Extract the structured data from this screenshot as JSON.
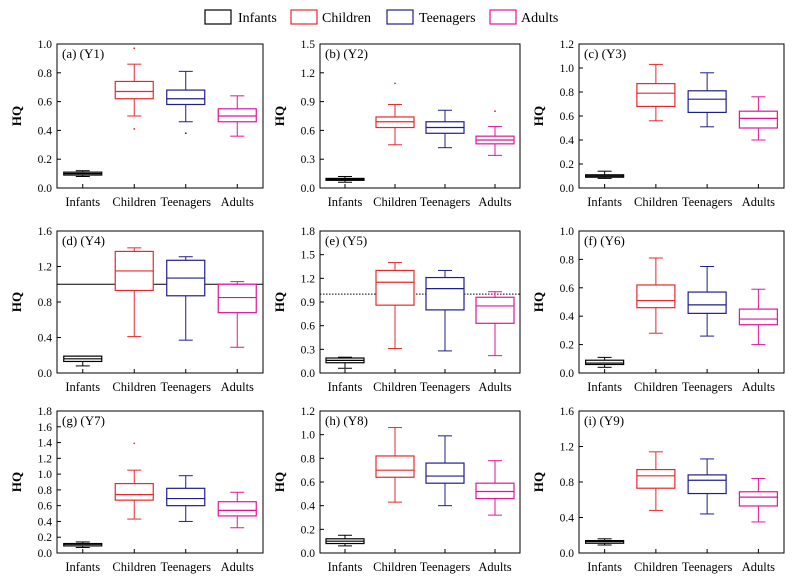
{
  "legend": {
    "items": [
      {
        "label": "Infants",
        "color": "#000000"
      },
      {
        "label": "Children",
        "color": "#e8282d"
      },
      {
        "label": "Teenagers",
        "color": "#1f1f8c"
      },
      {
        "label": "Adults",
        "color": "#e0169a"
      }
    ]
  },
  "chart_data": [
    {
      "type": "box",
      "title": "(a)  (Y1)",
      "ylabel": "HQ",
      "categories": [
        "Infants",
        "Children",
        "Teenagers",
        "Adults"
      ],
      "ylim": [
        0,
        1.0
      ],
      "yticks": [
        "0.0",
        "0.2",
        "0.4",
        "0.6",
        "0.8",
        "1.0"
      ],
      "reference_line": null,
      "series": [
        {
          "name": "Infants",
          "min": 0.08,
          "q1": 0.09,
          "median": 0.1,
          "q3": 0.11,
          "max": 0.12,
          "outliers": []
        },
        {
          "name": "Children",
          "min": 0.5,
          "q1": 0.62,
          "median": 0.67,
          "q3": 0.74,
          "max": 0.86,
          "outliers": [
            0.41,
            0.97
          ]
        },
        {
          "name": "Teenagers",
          "min": 0.46,
          "q1": 0.58,
          "median": 0.62,
          "q3": 0.68,
          "max": 0.81,
          "outliers": [
            0.38
          ]
        },
        {
          "name": "Adults",
          "min": 0.36,
          "q1": 0.46,
          "median": 0.5,
          "q3": 0.55,
          "max": 0.64,
          "outliers": []
        }
      ]
    },
    {
      "type": "box",
      "title": "(b)  (Y2)",
      "ylabel": "HQ",
      "categories": [
        "Infants",
        "Children",
        "Teenagers",
        "Adults"
      ],
      "ylim": [
        0,
        1.5
      ],
      "yticks": [
        "0.0",
        "0.3",
        "0.6",
        "0.9",
        "1.2",
        "1.5"
      ],
      "reference_line": null,
      "series": [
        {
          "name": "Infants",
          "min": 0.06,
          "q1": 0.08,
          "median": 0.09,
          "q3": 0.1,
          "max": 0.12,
          "outliers": []
        },
        {
          "name": "Children",
          "min": 0.45,
          "q1": 0.63,
          "median": 0.69,
          "q3": 0.74,
          "max": 0.87,
          "outliers": [
            1.09
          ]
        },
        {
          "name": "Teenagers",
          "min": 0.42,
          "q1": 0.57,
          "median": 0.63,
          "q3": 0.69,
          "max": 0.81,
          "outliers": []
        },
        {
          "name": "Adults",
          "min": 0.34,
          "q1": 0.46,
          "median": 0.5,
          "q3": 0.54,
          "max": 0.64,
          "outliers": [
            0.8
          ]
        }
      ]
    },
    {
      "type": "box",
      "title": "(c)  (Y3)",
      "ylabel": "HQ",
      "categories": [
        "Infants",
        "Children",
        "Teenagers",
        "Adults"
      ],
      "ylim": [
        0,
        1.2
      ],
      "yticks": [
        "0.0",
        "0.2",
        "0.4",
        "0.6",
        "0.8",
        "1.0",
        "1.2"
      ],
      "reference_line": null,
      "series": [
        {
          "name": "Infants",
          "min": 0.08,
          "q1": 0.09,
          "median": 0.1,
          "q3": 0.11,
          "max": 0.14,
          "outliers": []
        },
        {
          "name": "Children",
          "min": 0.56,
          "q1": 0.68,
          "median": 0.79,
          "q3": 0.87,
          "max": 1.03,
          "outliers": []
        },
        {
          "name": "Teenagers",
          "min": 0.51,
          "q1": 0.63,
          "median": 0.74,
          "q3": 0.81,
          "max": 0.96,
          "outliers": []
        },
        {
          "name": "Adults",
          "min": 0.4,
          "q1": 0.5,
          "median": 0.58,
          "q3": 0.64,
          "max": 0.76,
          "outliers": []
        }
      ]
    },
    {
      "type": "box",
      "title": "(d)  (Y4)",
      "ylabel": "HQ",
      "categories": [
        "Infants",
        "Children",
        "Teenagers",
        "Adults"
      ],
      "ylim": [
        0,
        1.6
      ],
      "yticks": [
        "0.0",
        "0.4",
        "0.8",
        "1.2",
        "1.6"
      ],
      "reference_line": {
        "value": 1.0,
        "style": "solid"
      },
      "series": [
        {
          "name": "Infants",
          "min": 0.08,
          "q1": 0.13,
          "median": 0.16,
          "q3": 0.19,
          "max": 0.19,
          "outliers": []
        },
        {
          "name": "Children",
          "min": 0.41,
          "q1": 0.93,
          "median": 1.15,
          "q3": 1.37,
          "max": 1.41,
          "outliers": []
        },
        {
          "name": "Teenagers",
          "min": 0.37,
          "q1": 0.87,
          "median": 1.07,
          "q3": 1.27,
          "max": 1.31,
          "outliers": []
        },
        {
          "name": "Adults",
          "min": 0.29,
          "q1": 0.68,
          "median": 0.85,
          "q3": 1.0,
          "max": 1.03,
          "outliers": []
        }
      ]
    },
    {
      "type": "box",
      "title": "(e)  (Y5)",
      "ylabel": "HQ",
      "categories": [
        "Infants",
        "Children",
        "Teenagers",
        "Adults"
      ],
      "ylim": [
        0,
        1.8
      ],
      "yticks": [
        "0.0",
        "0.3",
        "0.6",
        "0.9",
        "1.2",
        "1.5",
        "1.8"
      ],
      "reference_line": {
        "value": 1.0,
        "style": "dotted"
      },
      "series": [
        {
          "name": "Infants",
          "min": 0.06,
          "q1": 0.13,
          "median": 0.16,
          "q3": 0.19,
          "max": 0.2,
          "outliers": []
        },
        {
          "name": "Children",
          "min": 0.31,
          "q1": 0.86,
          "median": 1.15,
          "q3": 1.3,
          "max": 1.4,
          "outliers": []
        },
        {
          "name": "Teenagers",
          "min": 0.28,
          "q1": 0.8,
          "median": 1.07,
          "q3": 1.21,
          "max": 1.3,
          "outliers": []
        },
        {
          "name": "Adults",
          "min": 0.22,
          "q1": 0.63,
          "median": 0.85,
          "q3": 0.96,
          "max": 1.03,
          "outliers": []
        }
      ]
    },
    {
      "type": "box",
      "title": "(f)  (Y6)",
      "ylabel": "HQ",
      "categories": [
        "Infants",
        "Children",
        "Teenagers",
        "Adults"
      ],
      "ylim": [
        0,
        1.0
      ],
      "yticks": [
        "0.0",
        "0.2",
        "0.4",
        "0.6",
        "0.8",
        "1.0"
      ],
      "reference_line": null,
      "series": [
        {
          "name": "Infants",
          "min": 0.04,
          "q1": 0.06,
          "median": 0.07,
          "q3": 0.09,
          "max": 0.11,
          "outliers": []
        },
        {
          "name": "Children",
          "min": 0.28,
          "q1": 0.46,
          "median": 0.51,
          "q3": 0.62,
          "max": 0.81,
          "outliers": []
        },
        {
          "name": "Teenagers",
          "min": 0.26,
          "q1": 0.42,
          "median": 0.48,
          "q3": 0.57,
          "max": 0.75,
          "outliers": []
        },
        {
          "name": "Adults",
          "min": 0.2,
          "q1": 0.34,
          "median": 0.38,
          "q3": 0.45,
          "max": 0.59,
          "outliers": []
        }
      ]
    },
    {
      "type": "box",
      "title": "(g)  (Y7)",
      "ylabel": "HQ",
      "categories": [
        "Infants",
        "Children",
        "Teenagers",
        "Adults"
      ],
      "ylim": [
        0,
        1.8
      ],
      "yticks": [
        "0.0",
        "0.2",
        "0.4",
        "0.6",
        "0.8",
        "1.0",
        "1.2",
        "1.4",
        "1.6",
        "1.8"
      ],
      "reference_line": null,
      "series": [
        {
          "name": "Infants",
          "min": 0.07,
          "q1": 0.09,
          "median": 0.11,
          "q3": 0.12,
          "max": 0.14,
          "outliers": []
        },
        {
          "name": "Children",
          "min": 0.43,
          "q1": 0.67,
          "median": 0.74,
          "q3": 0.88,
          "max": 1.05,
          "outliers": [
            1.39
          ]
        },
        {
          "name": "Teenagers",
          "min": 0.4,
          "q1": 0.6,
          "median": 0.69,
          "q3": 0.82,
          "max": 0.98,
          "outliers": []
        },
        {
          "name": "Adults",
          "min": 0.32,
          "q1": 0.47,
          "median": 0.54,
          "q3": 0.65,
          "max": 0.77,
          "outliers": []
        }
      ]
    },
    {
      "type": "box",
      "title": "(h)  (Y8)",
      "ylabel": "HQ",
      "categories": [
        "Infants",
        "Children",
        "Teenagers",
        "Adults"
      ],
      "ylim": [
        0,
        1.2
      ],
      "yticks": [
        "0.0",
        "0.2",
        "0.4",
        "0.6",
        "0.8",
        "1.0",
        "1.2"
      ],
      "reference_line": null,
      "series": [
        {
          "name": "Infants",
          "min": 0.06,
          "q1": 0.08,
          "median": 0.1,
          "q3": 0.12,
          "max": 0.15,
          "outliers": []
        },
        {
          "name": "Children",
          "min": 0.43,
          "q1": 0.64,
          "median": 0.7,
          "q3": 0.82,
          "max": 1.06,
          "outliers": []
        },
        {
          "name": "Teenagers",
          "min": 0.4,
          "q1": 0.59,
          "median": 0.65,
          "q3": 0.76,
          "max": 0.99,
          "outliers": []
        },
        {
          "name": "Adults",
          "min": 0.32,
          "q1": 0.46,
          "median": 0.52,
          "q3": 0.59,
          "max": 0.78,
          "outliers": []
        }
      ]
    },
    {
      "type": "box",
      "title": "(i)  (Y9)",
      "ylabel": "HQ",
      "categories": [
        "Infants",
        "Children",
        "Teenagers",
        "Adults"
      ],
      "ylim": [
        0,
        1.6
      ],
      "yticks": [
        "0.0",
        "0.4",
        "0.8",
        "1.2",
        "1.6"
      ],
      "reference_line": null,
      "series": [
        {
          "name": "Infants",
          "min": 0.09,
          "q1": 0.11,
          "median": 0.13,
          "q3": 0.14,
          "max": 0.16,
          "outliers": []
        },
        {
          "name": "Children",
          "min": 0.48,
          "q1": 0.73,
          "median": 0.87,
          "q3": 0.94,
          "max": 1.14,
          "outliers": []
        },
        {
          "name": "Teenagers",
          "min": 0.44,
          "q1": 0.67,
          "median": 0.82,
          "q3": 0.88,
          "max": 1.06,
          "outliers": []
        },
        {
          "name": "Adults",
          "min": 0.35,
          "q1": 0.53,
          "median": 0.63,
          "q3": 0.69,
          "max": 0.84,
          "outliers": []
        }
      ]
    }
  ]
}
